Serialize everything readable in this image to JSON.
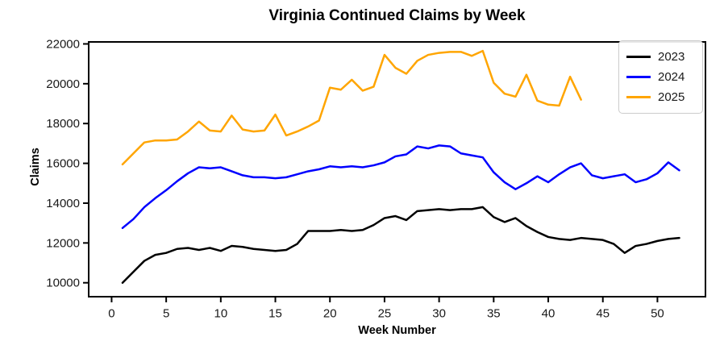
{
  "chart_data": {
    "type": "line",
    "title": "Virginia Continued Claims by Week",
    "xlabel": "Week Number",
    "ylabel": "Claims",
    "xlim": [
      -2.1,
      54.4
    ],
    "ylim": [
      9300,
      22100
    ],
    "xticks": [
      0,
      5,
      10,
      15,
      20,
      25,
      30,
      35,
      40,
      45,
      50
    ],
    "yticks": [
      10000,
      12000,
      14000,
      16000,
      18000,
      20000,
      22000
    ],
    "grid": false,
    "legend_position": "upper right",
    "series": [
      {
        "name": "2023",
        "color": "#000000",
        "x": [
          1,
          2,
          3,
          4,
          5,
          6,
          7,
          8,
          9,
          10,
          11,
          12,
          13,
          14,
          15,
          16,
          17,
          18,
          19,
          20,
          21,
          22,
          23,
          24,
          25,
          26,
          27,
          28,
          29,
          30,
          31,
          32,
          33,
          34,
          35,
          36,
          37,
          38,
          39,
          40,
          41,
          42,
          43,
          44,
          45,
          46,
          47,
          48,
          49,
          50,
          51,
          52
        ],
        "values": [
          10000,
          10550,
          11100,
          11400,
          11500,
          11700,
          11750,
          11650,
          11750,
          11600,
          11850,
          11800,
          11700,
          11650,
          11600,
          11650,
          11950,
          12600,
          12600,
          12600,
          12650,
          12600,
          12650,
          12900,
          13250,
          13350,
          13150,
          13600,
          13650,
          13700,
          13650,
          13700,
          13700,
          13800,
          13300,
          13050,
          13250,
          12850,
          12550,
          12300,
          12200,
          12150,
          12250,
          12200,
          12150,
          11950,
          11500,
          11850,
          11950,
          12100,
          12200,
          12250
        ]
      },
      {
        "name": "2024",
        "color": "#0000ff",
        "x": [
          1,
          2,
          3,
          4,
          5,
          6,
          7,
          8,
          9,
          10,
          11,
          12,
          13,
          14,
          15,
          16,
          17,
          18,
          19,
          20,
          21,
          22,
          23,
          24,
          25,
          26,
          27,
          28,
          29,
          30,
          31,
          32,
          33,
          34,
          35,
          36,
          37,
          38,
          39,
          40,
          41,
          42,
          43,
          44,
          45,
          46,
          47,
          48,
          49,
          50,
          51,
          52
        ],
        "values": [
          12750,
          13200,
          13800,
          14250,
          14650,
          15100,
          15500,
          15800,
          15750,
          15800,
          15600,
          15400,
          15300,
          15300,
          15250,
          15300,
          15450,
          15600,
          15700,
          15850,
          15800,
          15850,
          15800,
          15900,
          16050,
          16350,
          16450,
          16850,
          16750,
          16900,
          16850,
          16500,
          16400,
          16300,
          15550,
          15050,
          14700,
          15000,
          15350,
          15050,
          15450,
          15800,
          16000,
          15400,
          15250,
          15350,
          15450,
          15050,
          15200,
          15500,
          16050,
          15650
        ]
      },
      {
        "name": "2025",
        "color": "#ffa500",
        "x": [
          1,
          2,
          3,
          4,
          5,
          6,
          7,
          8,
          9,
          10,
          11,
          12,
          13,
          14,
          15,
          16,
          17,
          18,
          19,
          20,
          21,
          22,
          23,
          24,
          25,
          26,
          27,
          28,
          29,
          30,
          31,
          32,
          33,
          34,
          35,
          36,
          37,
          38,
          39,
          40,
          41,
          42,
          43
        ],
        "values": [
          15950,
          16500,
          17050,
          17150,
          17150,
          17200,
          17600,
          18100,
          17650,
          17600,
          18400,
          17700,
          17600,
          17650,
          18450,
          17400,
          17600,
          17850,
          18150,
          19800,
          19700,
          20200,
          19650,
          19850,
          21450,
          20800,
          20500,
          21150,
          21450,
          21550,
          21600,
          21600,
          21400,
          21650,
          20050,
          19500,
          19350,
          20450,
          19150,
          18950,
          18900,
          20350,
          19200
        ]
      }
    ]
  }
}
